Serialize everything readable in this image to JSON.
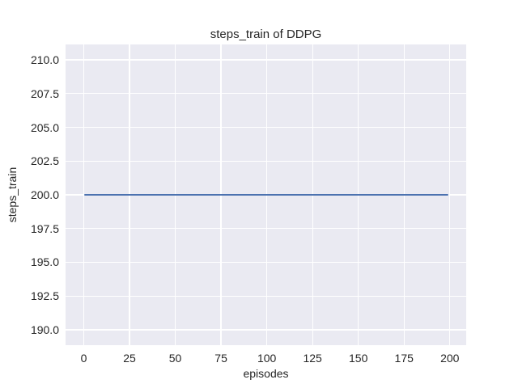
{
  "chart_data": {
    "type": "line",
    "title": "steps_train of DDPG",
    "xlabel": "episodes",
    "ylabel": "steps_train",
    "grid": true,
    "legend": "none",
    "xlim": [
      -9.95,
      208.95
    ],
    "ylim": [
      188.86,
      211.14
    ],
    "xticks": [
      0,
      25,
      50,
      75,
      100,
      125,
      150,
      175,
      200
    ],
    "xtick_labels": [
      "0",
      "25",
      "50",
      "75",
      "100",
      "125",
      "150",
      "175",
      "200"
    ],
    "yticks": [
      190.0,
      192.5,
      195.0,
      197.5,
      200.0,
      202.5,
      205.0,
      207.5,
      210.0
    ],
    "ytick_labels": [
      "190.0",
      "192.5",
      "195.0",
      "197.5",
      "200.0",
      "202.5",
      "205.0",
      "207.5",
      "210.0"
    ],
    "series": [
      {
        "name": "steps_train",
        "constant_value": 200,
        "x_start": 0,
        "x_end": 199,
        "points": [
          [
            0,
            200
          ],
          [
            199,
            200
          ]
        ]
      }
    ],
    "colors": {
      "figure_background": "#ffffff",
      "axes_background": "#eaeaf2",
      "gridline": "#ffffff",
      "line": "#4c72b0",
      "text": "#262626"
    }
  }
}
